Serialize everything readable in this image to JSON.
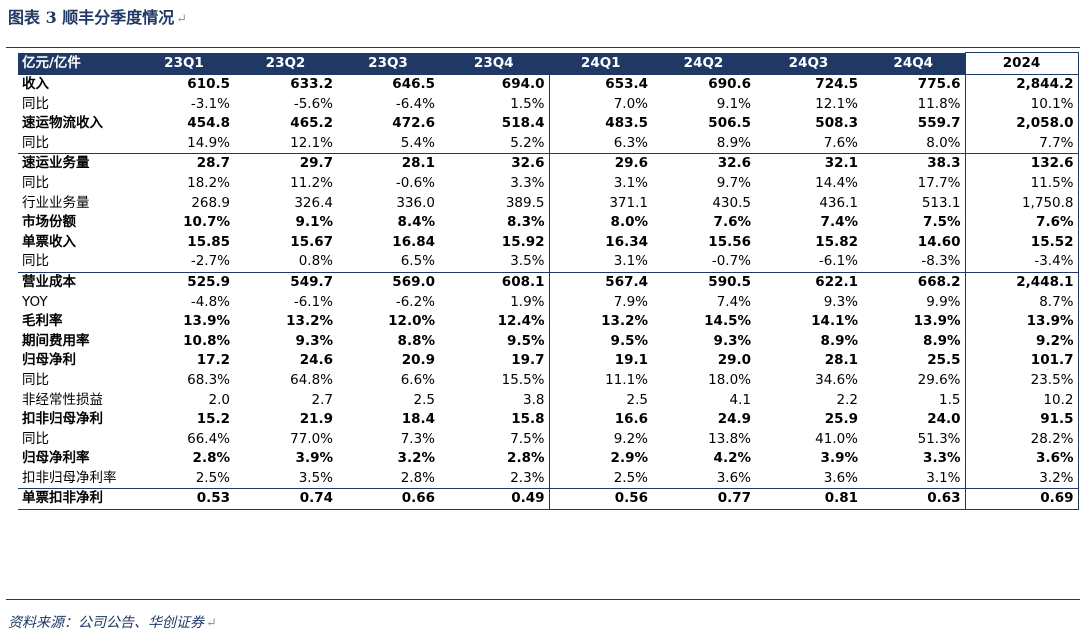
{
  "header": {
    "title": "图表 3  顺丰分季度情况",
    "return_mark": "↵"
  },
  "table": {
    "columns": [
      "亿元/亿件",
      "23Q1",
      "23Q2",
      "23Q3",
      "23Q4",
      "24Q1",
      "24Q2",
      "24Q3",
      "24Q4",
      "2024"
    ],
    "rows": [
      {
        "label": "收入",
        "bold": true,
        "values": [
          "610.5",
          "633.2",
          "646.5",
          "694.0",
          "653.4",
          "690.6",
          "724.5",
          "775.6",
          "2,844.2"
        ]
      },
      {
        "label": "同比",
        "bold": false,
        "values": [
          "-3.1%",
          "-5.6%",
          "-6.4%",
          "1.5%",
          "7.0%",
          "9.1%",
          "12.1%",
          "11.8%",
          "10.1%"
        ]
      },
      {
        "label": "速运物流收入",
        "bold": true,
        "values": [
          "454.8",
          "465.2",
          "472.6",
          "518.4",
          "483.5",
          "506.5",
          "508.3",
          "559.7",
          "2,058.0"
        ]
      },
      {
        "label": "同比",
        "bold": false,
        "values": [
          "14.9%",
          "12.1%",
          "5.4%",
          "5.2%",
          "6.3%",
          "8.9%",
          "7.6%",
          "8.0%",
          "7.7%"
        ]
      },
      {
        "label": "速运业务量",
        "bold": true,
        "group": true,
        "values": [
          "28.7",
          "29.7",
          "28.1",
          "32.6",
          "29.6",
          "32.6",
          "32.1",
          "38.3",
          "132.6"
        ]
      },
      {
        "label": "同比",
        "bold": false,
        "values": [
          "18.2%",
          "11.2%",
          "-0.6%",
          "3.3%",
          "3.1%",
          "9.7%",
          "14.4%",
          "17.7%",
          "11.5%"
        ]
      },
      {
        "label": "行业业务量",
        "bold": false,
        "values": [
          "268.9",
          "326.4",
          "336.0",
          "389.5",
          "371.1",
          "430.5",
          "436.1",
          "513.1",
          "1,750.8"
        ]
      },
      {
        "label": "市场份额",
        "bold": true,
        "values": [
          "10.7%",
          "9.1%",
          "8.4%",
          "8.3%",
          "8.0%",
          "7.6%",
          "7.4%",
          "7.5%",
          "7.6%"
        ]
      },
      {
        "label": "单票收入",
        "bold": true,
        "values": [
          "15.85",
          "15.67",
          "16.84",
          "15.92",
          "16.34",
          "15.56",
          "15.82",
          "14.60",
          "15.52"
        ]
      },
      {
        "label": "同比",
        "bold": false,
        "values": [
          "-2.7%",
          "0.8%",
          "6.5%",
          "3.5%",
          "3.1%",
          "-0.7%",
          "-6.1%",
          "-8.3%",
          "-3.4%"
        ]
      },
      {
        "label": "营业成本",
        "bold": true,
        "group": true,
        "values": [
          "525.9",
          "549.7",
          "569.0",
          "608.1",
          "567.4",
          "590.5",
          "622.1",
          "668.2",
          "2,448.1"
        ]
      },
      {
        "label": "YOY",
        "bold": false,
        "values": [
          "-4.8%",
          "-6.1%",
          "-6.2%",
          "1.9%",
          "7.9%",
          "7.4%",
          "9.3%",
          "9.9%",
          "8.7%"
        ]
      },
      {
        "label": "毛利率",
        "bold": true,
        "values": [
          "13.9%",
          "13.2%",
          "12.0%",
          "12.4%",
          "13.2%",
          "14.5%",
          "14.1%",
          "13.9%",
          "13.9%"
        ]
      },
      {
        "label": "期间费用率",
        "bold": true,
        "values": [
          "10.8%",
          "9.3%",
          "8.8%",
          "9.5%",
          "9.5%",
          "9.3%",
          "8.9%",
          "8.9%",
          "9.2%"
        ]
      },
      {
        "label": "归母净利",
        "bold": true,
        "values": [
          "17.2",
          "24.6",
          "20.9",
          "19.7",
          "19.1",
          "29.0",
          "28.1",
          "25.5",
          "101.7"
        ]
      },
      {
        "label": "同比",
        "bold": false,
        "values": [
          "68.3%",
          "64.8%",
          "6.6%",
          "15.5%",
          "11.1%",
          "18.0%",
          "34.6%",
          "29.6%",
          "23.5%"
        ]
      },
      {
        "label": "非经常性损益",
        "bold": false,
        "values": [
          "2.0",
          "2.7",
          "2.5",
          "3.8",
          "2.5",
          "4.1",
          "2.2",
          "1.5",
          "10.2"
        ]
      },
      {
        "label": "扣非归母净利",
        "bold": true,
        "values": [
          "15.2",
          "21.9",
          "18.4",
          "15.8",
          "16.6",
          "24.9",
          "25.9",
          "24.0",
          "91.5"
        ]
      },
      {
        "label": "同比",
        "bold": false,
        "values": [
          "66.4%",
          "77.0%",
          "7.3%",
          "7.5%",
          "9.2%",
          "13.8%",
          "41.0%",
          "51.3%",
          "28.2%"
        ]
      },
      {
        "label": "归母净利率",
        "bold": true,
        "values": [
          "2.8%",
          "3.9%",
          "3.2%",
          "2.8%",
          "2.9%",
          "4.2%",
          "3.9%",
          "3.3%",
          "3.6%"
        ]
      },
      {
        "label": "扣非归母净利率",
        "bold": false,
        "values": [
          "2.5%",
          "3.5%",
          "2.8%",
          "2.3%",
          "2.5%",
          "3.6%",
          "3.6%",
          "3.1%",
          "3.2%"
        ]
      },
      {
        "label": "单票扣非净利",
        "bold": true,
        "group": true,
        "last": true,
        "values": [
          "0.53",
          "0.74",
          "0.66",
          "0.49",
          "0.56",
          "0.77",
          "0.81",
          "0.63",
          "0.69"
        ]
      }
    ]
  },
  "footer": {
    "source": "资料来源：公司公告、华创证券",
    "return_mark": "↵"
  },
  "colors": {
    "accent": "#1f3864",
    "header_text": "#ffffff"
  }
}
